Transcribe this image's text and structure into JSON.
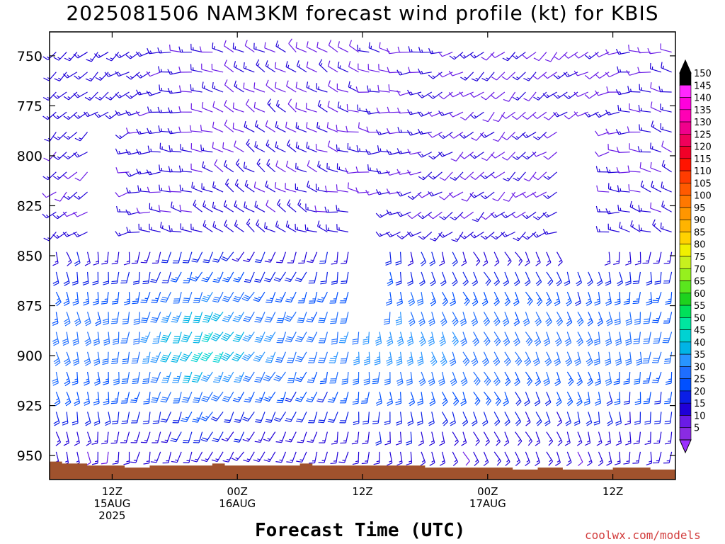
{
  "chart_data": {
    "type": "wind-profile",
    "title": "2025081506 NAM3KM forecast wind profile (kt) for KBIS",
    "xlabel": "Forecast Time (UTC)",
    "ylabel": "",
    "credit": "coolwx.com/models",
    "yticks": [
      "750",
      "775",
      "800",
      "825",
      "850",
      "875",
      "900",
      "925",
      "950"
    ],
    "ylim": [
      738,
      962
    ],
    "y_scale": "pressure (hPa), inverted",
    "x_range_hours": [
      -6,
      54
    ],
    "xticks": [
      {
        "hour": 0,
        "lines": [
          "12Z",
          "15AUG",
          "2025"
        ]
      },
      {
        "hour": 12,
        "lines": [
          "00Z",
          "16AUG"
        ]
      },
      {
        "hour": 24,
        "lines": [
          "12Z"
        ]
      },
      {
        "hour": 36,
        "lines": [
          "00Z",
          "17AUG"
        ]
      },
      {
        "hour": 48,
        "lines": [
          "12Z"
        ]
      }
    ],
    "colorbar": {
      "labels": [
        "5",
        "10",
        "15",
        "20",
        "25",
        "30",
        "35",
        "40",
        "45",
        "50",
        "55",
        "60",
        "65",
        "70",
        "75",
        "80",
        "85",
        "90",
        "95",
        "100",
        "105",
        "110",
        "115",
        "120",
        "125",
        "130",
        "135",
        "140",
        "145",
        "150"
      ],
      "colors": [
        "#8a2be2",
        "#6a1be6",
        "#1f00d8",
        "#0a1ee6",
        "#0050ff",
        "#1e6eff",
        "#2894ff",
        "#00b4e6",
        "#00d2d2",
        "#00e6a0",
        "#00e05a",
        "#1ed21e",
        "#5ae61e",
        "#96f01e",
        "#c8f01e",
        "#f0f000",
        "#ffd200",
        "#ffb400",
        "#ff9600",
        "#ff7800",
        "#ff5a00",
        "#ff3c00",
        "#ff1400",
        "#f00028",
        "#f0005a",
        "#f0008c",
        "#ff00b4",
        "#ff00dc",
        "#ff28ff",
        "#000000"
      ],
      "top_arrow_color": "#000000",
      "bottom_arrow_color": "#9b30ff"
    },
    "terrain_color": "#a0522d",
    "terrain_surface_hpa": [
      953,
      954,
      954,
      955,
      955,
      955,
      956,
      956,
      955,
      955,
      955,
      955,
      955,
      954,
      955,
      955,
      955,
      955,
      955,
      955,
      954,
      955,
      955,
      955,
      955,
      955,
      955,
      955,
      955,
      955,
      956,
      956,
      956,
      956,
      956,
      956,
      956,
      957,
      957,
      956,
      956,
      957,
      957,
      957,
      957,
      956,
      956,
      956,
      957,
      957
    ],
    "barb_levels_hpa": [
      746,
      756,
      766,
      776,
      786,
      796,
      806,
      816,
      826,
      836,
      846,
      856,
      866,
      876,
      886,
      896,
      906,
      916,
      926,
      936,
      946
    ],
    "barb_columns_hours": [
      -5.5,
      -4.5,
      -3.5,
      -2.5,
      -1.5,
      -0.5,
      0.5,
      1.5,
      2.5,
      3.5,
      4.5,
      5.5,
      6.5,
      7.5,
      8.5,
      9.5,
      10.5,
      11.5,
      12.5,
      13.5,
      14.5,
      15.5,
      16.5,
      17.5,
      18.5,
      19.5,
      20.5,
      21.5,
      22.5,
      23.5,
      24.5,
      25.5,
      26.5,
      27.5,
      28.5,
      29.5,
      30.5,
      31.5,
      32.5,
      33.5,
      34.5,
      35.5,
      36.5,
      37.5,
      38.5,
      39.5,
      40.5,
      41.5,
      42.5,
      43.5,
      44.5,
      45.5,
      46.5,
      47.5,
      48.5,
      49.5,
      50.5,
      51.5,
      52.5,
      53.5
    ]
  }
}
